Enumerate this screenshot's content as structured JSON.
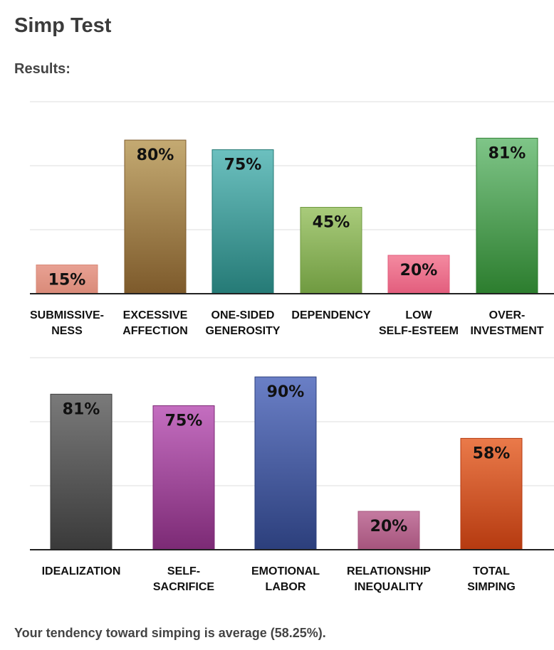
{
  "page": {
    "title": "Simp Test",
    "results_heading": "Results:",
    "summary": "Your tendency toward simping is average (58.25%)."
  },
  "chart_data": [
    {
      "type": "bar",
      "title": "",
      "xlabel": "",
      "ylabel": "",
      "ylim": [
        0,
        100
      ],
      "grid": true,
      "categories": [
        [
          "SUBMISSIVE-",
          "NESS"
        ],
        [
          "EXCESSIVE",
          "AFFECTION"
        ],
        [
          "ONE-SIDED",
          "GENEROSITY"
        ],
        [
          "DEPENDENCY"
        ],
        [
          "LOW",
          "SELF-ESTEEM"
        ],
        [
          "OVER-",
          "INVESTMENT"
        ]
      ],
      "values": [
        15,
        80,
        75,
        45,
        20,
        81
      ],
      "value_labels": [
        "15%",
        "80%",
        "75%",
        "45%",
        "20%",
        "81%"
      ],
      "colors": [
        [
          "#e8a193",
          "#d98a78"
        ],
        [
          "#c4aa72",
          "#7d5a2b"
        ],
        [
          "#6cc0bf",
          "#257a76"
        ],
        [
          "#a9cb7b",
          "#6f9a40"
        ],
        [
          "#f48aa0",
          "#e25d7d"
        ],
        [
          "#7fc588",
          "#2c7d2e"
        ]
      ]
    },
    {
      "type": "bar",
      "title": "",
      "xlabel": "",
      "ylabel": "",
      "ylim": [
        0,
        100
      ],
      "grid": true,
      "categories": [
        [
          "IDEALIZATION"
        ],
        [
          "SELF-",
          "SACRIFICE"
        ],
        [
          "EMOTIONAL",
          "LABOR"
        ],
        [
          "RELATIONSHIP",
          "INEQUALITY"
        ],
        [
          "TOTAL",
          "SIMPING"
        ]
      ],
      "values": [
        81,
        75,
        90,
        20,
        58
      ],
      "value_labels": [
        "81%",
        "75%",
        "90%",
        "20%",
        "58%"
      ],
      "colors": [
        [
          "#7a7a7a",
          "#3a3a3a"
        ],
        [
          "#c46ec0",
          "#7c2a75"
        ],
        [
          "#6a7fc6",
          "#2c3f7c"
        ],
        [
          "#c47aa0",
          "#a5547c"
        ],
        [
          "#ea7a4a",
          "#b53a10"
        ]
      ]
    }
  ]
}
